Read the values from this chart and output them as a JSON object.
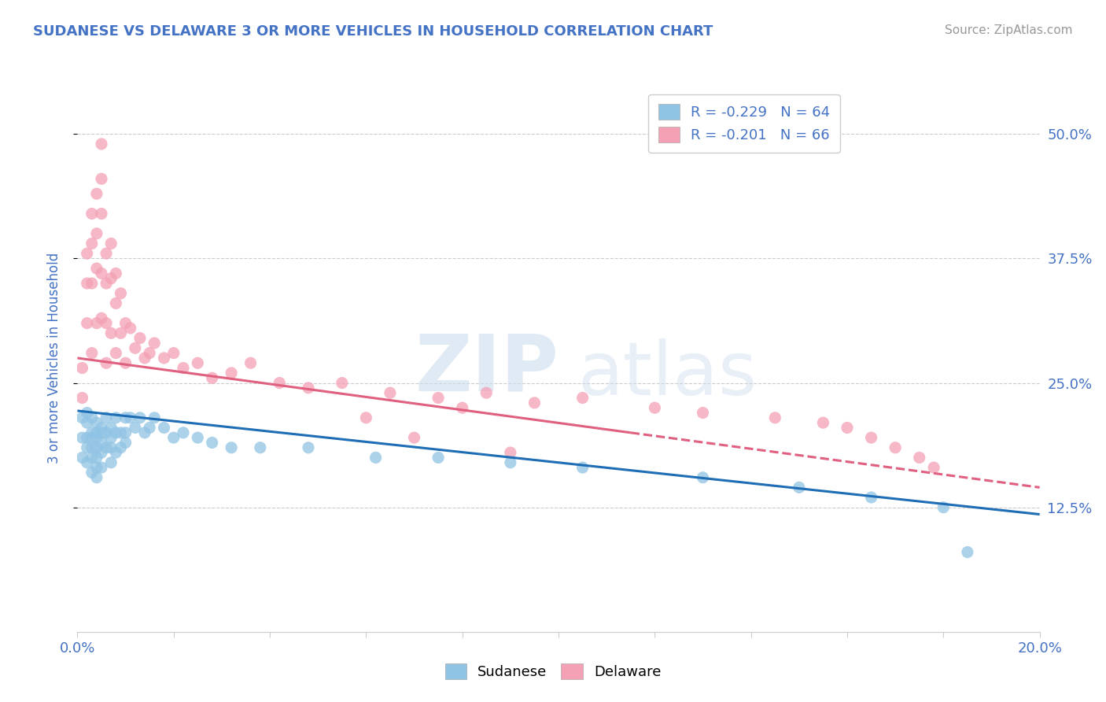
{
  "title": "SUDANESE VS DELAWARE 3 OR MORE VEHICLES IN HOUSEHOLD CORRELATION CHART",
  "source": "Source: ZipAtlas.com",
  "ylabel": "3 or more Vehicles in Household",
  "xlim": [
    0.0,
    0.2
  ],
  "ylim": [
    0.0,
    0.55
  ],
  "yticks": [
    0.125,
    0.25,
    0.375,
    0.5
  ],
  "ytick_labels": [
    "12.5%",
    "25.0%",
    "37.5%",
    "50.0%"
  ],
  "legend_r1": "R = -0.229",
  "legend_n1": "N = 64",
  "legend_r2": "R = -0.201",
  "legend_n2": "N = 66",
  "color_sudanese": "#90c4e4",
  "color_delaware": "#f4a0b5",
  "color_line_sudanese": "#1f6eb5",
  "color_line_delaware": "#e06080",
  "title_color": "#4472c4",
  "axis_color": "#4472c4",
  "background_color": "#ffffff",
  "grid_color": "#cccccc",
  "sudanese_x": [
    0.001,
    0.001,
    0.001,
    0.002,
    0.002,
    0.002,
    0.002,
    0.002,
    0.003,
    0.003,
    0.003,
    0.003,
    0.003,
    0.003,
    0.004,
    0.004,
    0.004,
    0.004,
    0.004,
    0.004,
    0.004,
    0.005,
    0.005,
    0.005,
    0.005,
    0.005,
    0.006,
    0.006,
    0.006,
    0.007,
    0.007,
    0.007,
    0.007,
    0.008,
    0.008,
    0.008,
    0.009,
    0.009,
    0.01,
    0.01,
    0.01,
    0.011,
    0.012,
    0.013,
    0.014,
    0.015,
    0.016,
    0.018,
    0.02,
    0.022,
    0.025,
    0.028,
    0.032,
    0.038,
    0.048,
    0.062,
    0.075,
    0.09,
    0.105,
    0.13,
    0.15,
    0.165,
    0.18,
    0.185
  ],
  "sudanese_y": [
    0.215,
    0.195,
    0.175,
    0.22,
    0.21,
    0.195,
    0.185,
    0.17,
    0.215,
    0.2,
    0.195,
    0.185,
    0.175,
    0.16,
    0.21,
    0.2,
    0.195,
    0.185,
    0.175,
    0.165,
    0.155,
    0.205,
    0.2,
    0.19,
    0.18,
    0.165,
    0.215,
    0.2,
    0.185,
    0.205,
    0.195,
    0.185,
    0.17,
    0.215,
    0.2,
    0.18,
    0.2,
    0.185,
    0.215,
    0.2,
    0.19,
    0.215,
    0.205,
    0.215,
    0.2,
    0.205,
    0.215,
    0.205,
    0.195,
    0.2,
    0.195,
    0.19,
    0.185,
    0.185,
    0.185,
    0.175,
    0.175,
    0.17,
    0.165,
    0.155,
    0.145,
    0.135,
    0.125,
    0.08
  ],
  "delaware_x": [
    0.001,
    0.001,
    0.002,
    0.002,
    0.002,
    0.003,
    0.003,
    0.003,
    0.003,
    0.004,
    0.004,
    0.004,
    0.004,
    0.005,
    0.005,
    0.005,
    0.005,
    0.005,
    0.006,
    0.006,
    0.006,
    0.006,
    0.007,
    0.007,
    0.007,
    0.008,
    0.008,
    0.008,
    0.009,
    0.009,
    0.01,
    0.01,
    0.011,
    0.012,
    0.013,
    0.014,
    0.015,
    0.016,
    0.018,
    0.02,
    0.022,
    0.025,
    0.028,
    0.032,
    0.036,
    0.042,
    0.048,
    0.055,
    0.065,
    0.075,
    0.085,
    0.095,
    0.105,
    0.12,
    0.13,
    0.145,
    0.155,
    0.16,
    0.165,
    0.17,
    0.175,
    0.178,
    0.06,
    0.07,
    0.08,
    0.09
  ],
  "delaware_y": [
    0.265,
    0.235,
    0.38,
    0.35,
    0.31,
    0.42,
    0.39,
    0.35,
    0.28,
    0.44,
    0.4,
    0.365,
    0.31,
    0.49,
    0.455,
    0.42,
    0.36,
    0.315,
    0.38,
    0.35,
    0.31,
    0.27,
    0.39,
    0.355,
    0.3,
    0.36,
    0.33,
    0.28,
    0.34,
    0.3,
    0.31,
    0.27,
    0.305,
    0.285,
    0.295,
    0.275,
    0.28,
    0.29,
    0.275,
    0.28,
    0.265,
    0.27,
    0.255,
    0.26,
    0.27,
    0.25,
    0.245,
    0.25,
    0.24,
    0.235,
    0.24,
    0.23,
    0.235,
    0.225,
    0.22,
    0.215,
    0.21,
    0.205,
    0.195,
    0.185,
    0.175,
    0.165,
    0.215,
    0.195,
    0.225,
    0.18
  ],
  "line_sudanese_x0": 0.0,
  "line_sudanese_y0": 0.222,
  "line_sudanese_x1": 0.2,
  "line_sudanese_y1": 0.118,
  "line_delaware_solid_x0": 0.0,
  "line_delaware_solid_y0": 0.275,
  "line_delaware_solid_x1": 0.115,
  "line_delaware_solid_y1": 0.2,
  "line_delaware_dash_x0": 0.115,
  "line_delaware_dash_y0": 0.2,
  "line_delaware_dash_x1": 0.2,
  "line_delaware_dash_y1": 0.145
}
